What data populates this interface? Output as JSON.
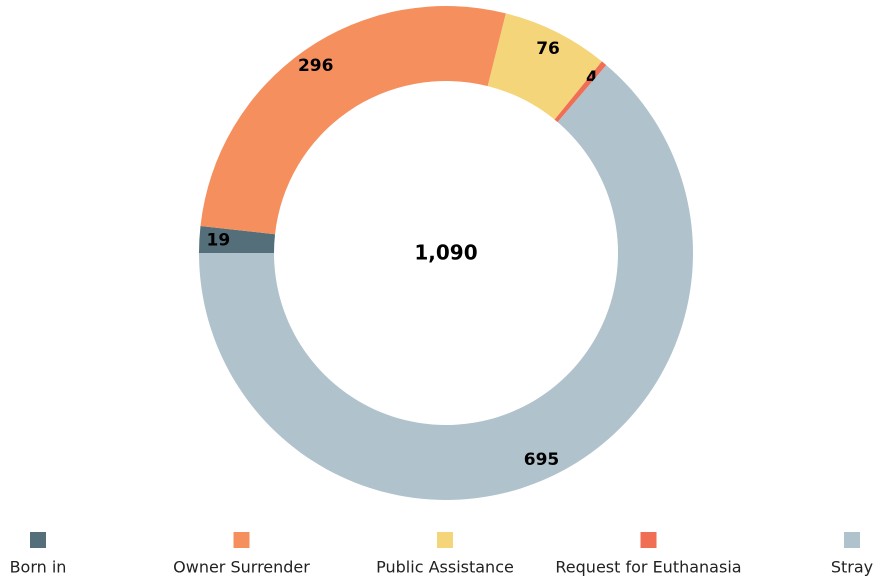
{
  "chart_data": {
    "type": "donut",
    "center_label": "1,090",
    "categories": [
      "Born in",
      "Owner Surrender",
      "Public Assistance",
      "Request for Euthanasia",
      "Stray"
    ],
    "values": [
      19,
      296,
      76,
      4,
      695
    ],
    "value_labels": [
      "19",
      "296",
      "76",
      "4",
      "695"
    ],
    "colors": [
      "#546e7a",
      "#f5905e",
      "#f5d57a",
      "#f06e54",
      "#b0c2cc"
    ],
    "legend": "bottom"
  }
}
